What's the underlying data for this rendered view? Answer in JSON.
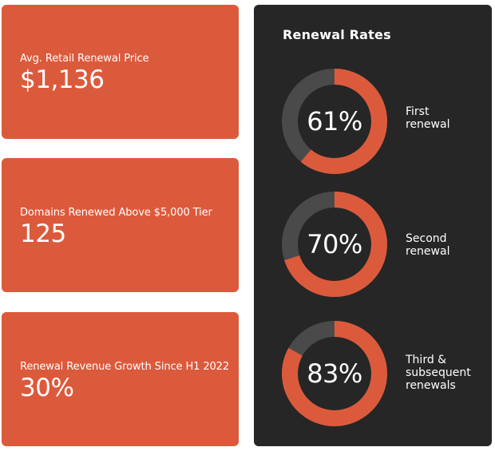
{
  "cards": [
    {
      "label": "Avg. Retail Renewal Price",
      "value": "$1,136"
    },
    {
      "label": "Domains Renewed Above $5,000 Tier",
      "value": "125"
    },
    {
      "label": "Renewal Revenue Growth Since H1 2022",
      "value": "30%"
    }
  ],
  "renewal_rates": {
    "title": "Renewal Rates",
    "gauges": [
      {
        "value_text": "61%",
        "fraction": 0.61,
        "label_line1": "First",
        "label_line2": "renewal",
        "label_line3": ""
      },
      {
        "value_text": "70%",
        "fraction": 0.7,
        "label_line1": "Second",
        "label_line2": "renewal",
        "label_line3": ""
      },
      {
        "value_text": "83%",
        "fraction": 0.83,
        "label_line1": "Third &",
        "label_line2": "subsequent",
        "label_line3": "renewals"
      }
    ]
  },
  "colors": {
    "accent": "#dc5a3c",
    "panel": "#262626",
    "track": "#4a4a4a",
    "text": "#ffffff"
  }
}
